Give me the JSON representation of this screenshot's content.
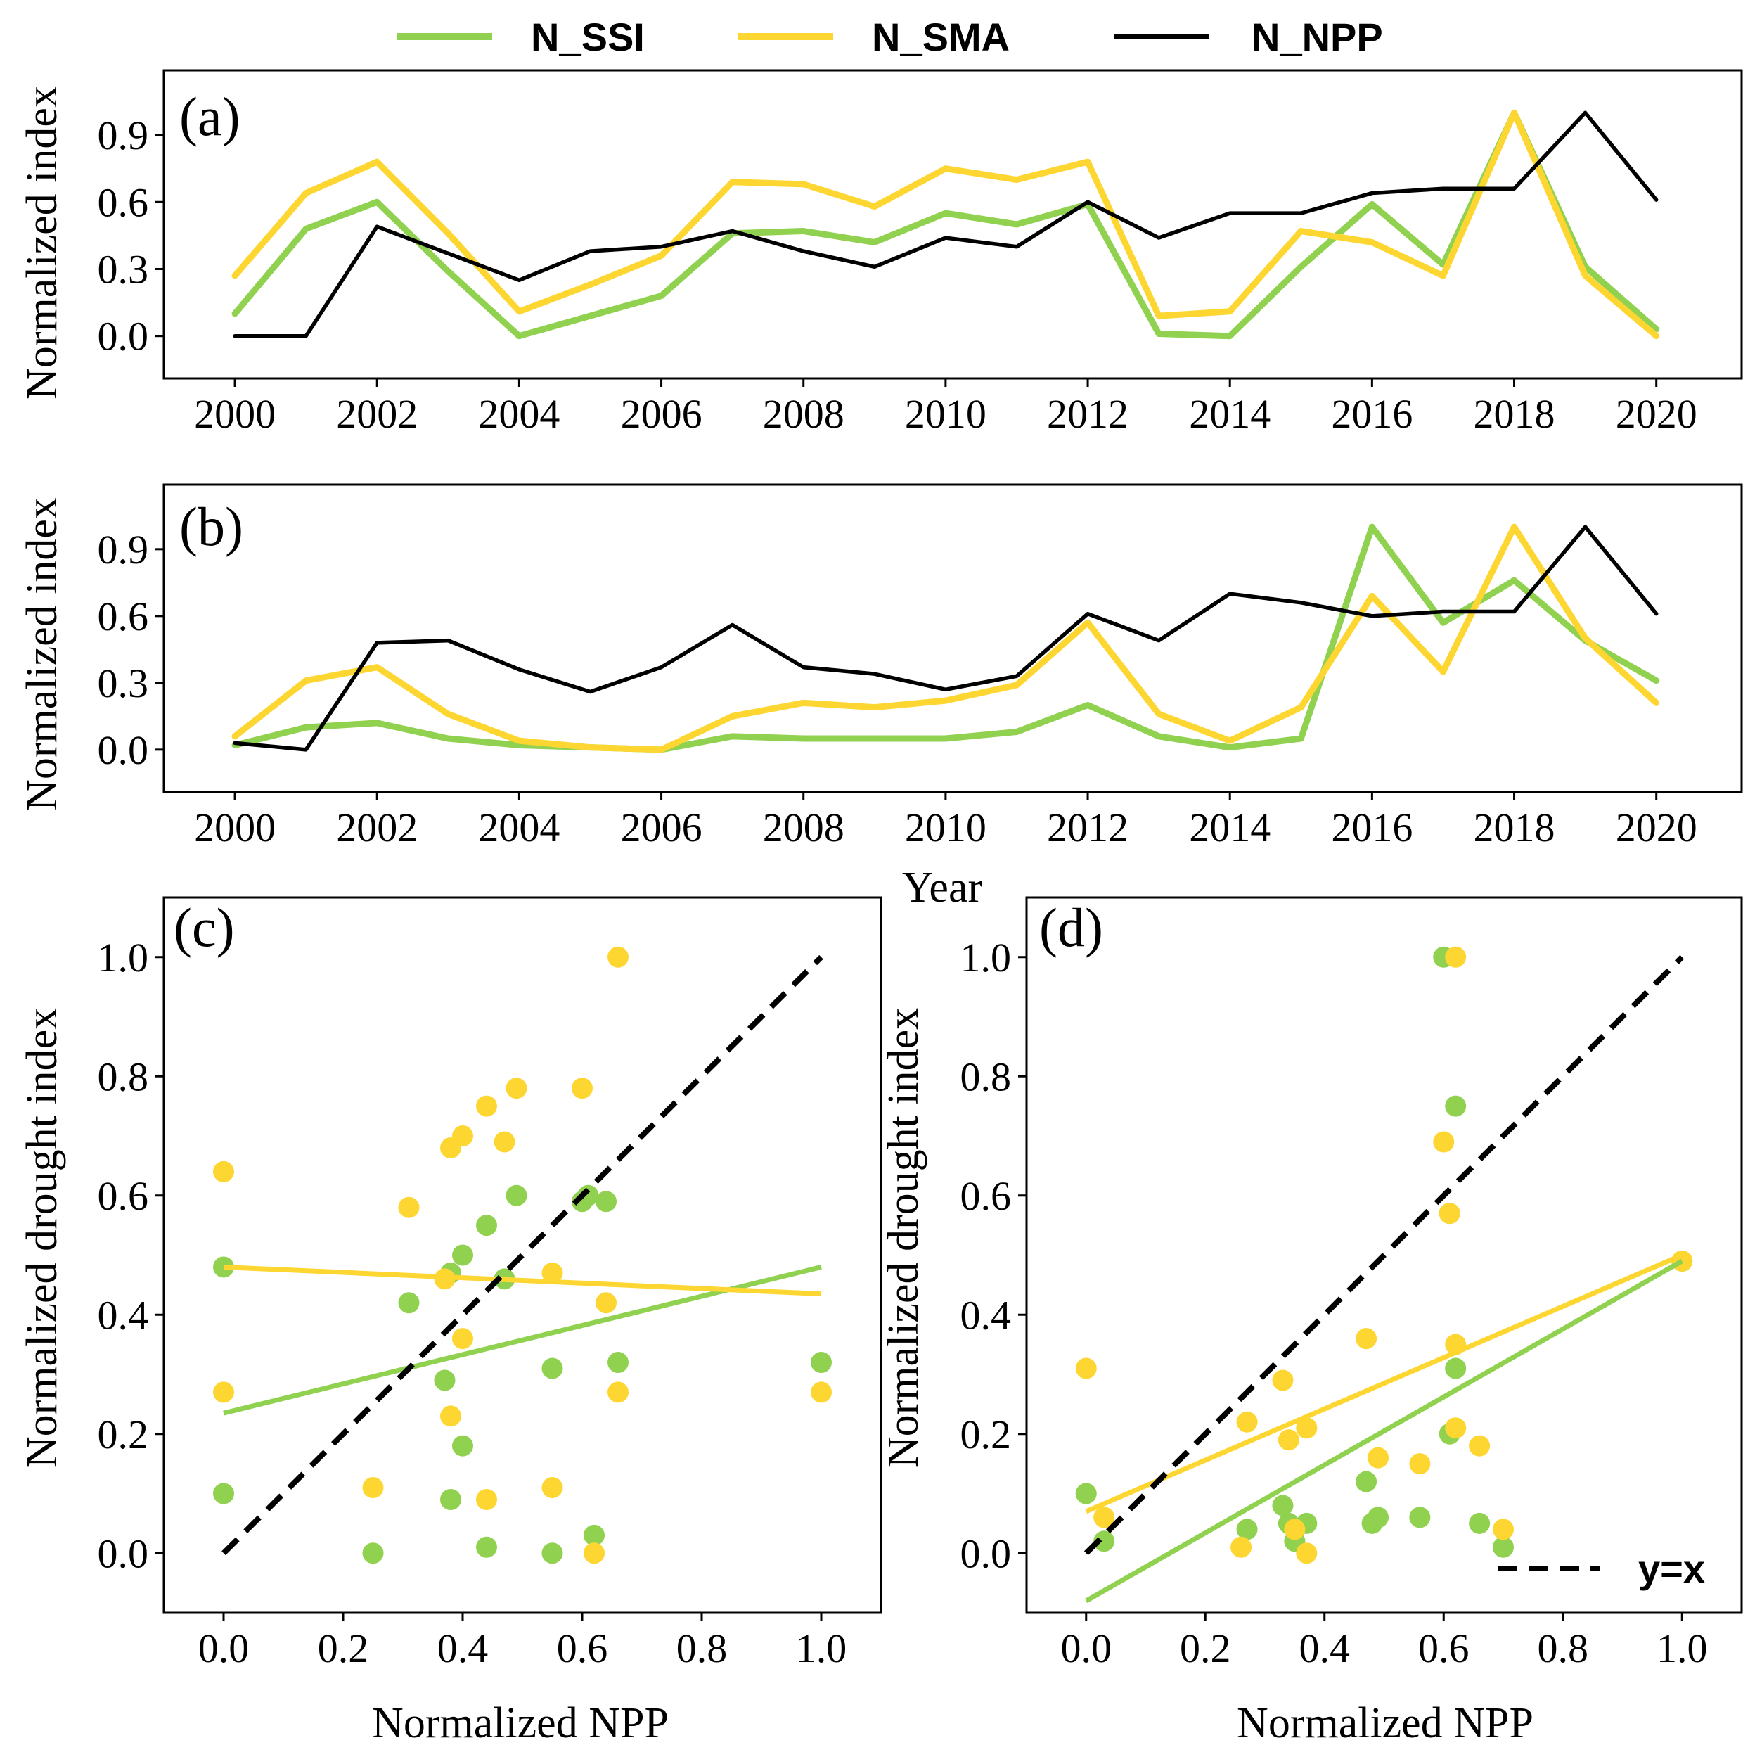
{
  "colors": {
    "ssi": "#90d14f",
    "sma": "#fdd631",
    "npp": "#000000"
  },
  "chart_data": [
    {
      "type": "line",
      "panel": "(a)",
      "legend": [
        "N_SSI",
        "N_SMA",
        "N_NPP"
      ],
      "xlabel": "",
      "ylabel": "Normalized index",
      "x": [
        2000,
        2001,
        2002,
        2003,
        2004,
        2005,
        2006,
        2007,
        2008,
        2009,
        2010,
        2011,
        2012,
        2013,
        2014,
        2015,
        2016,
        2017,
        2018,
        2019,
        2020
      ],
      "xticks": [
        "2000",
        "2002",
        "2004",
        "2006",
        "2008",
        "2010",
        "2012",
        "2014",
        "2016",
        "2018",
        "2020"
      ],
      "yticks": [
        "0.0",
        "0.3",
        "0.6",
        "0.9"
      ],
      "xlim": [
        1999,
        2021.2
      ],
      "ylim": [
        -0.19,
        1.19
      ],
      "series": [
        {
          "name": "N_SSI",
          "values": [
            0.1,
            0.48,
            0.6,
            0.29,
            0.0,
            0.09,
            0.18,
            0.46,
            0.47,
            0.42,
            0.55,
            0.5,
            0.59,
            0.01,
            0.0,
            0.31,
            0.59,
            0.32,
            1.0,
            0.31,
            0.03
          ]
        },
        {
          "name": "N_SMA",
          "values": [
            0.27,
            0.64,
            0.78,
            0.46,
            0.11,
            0.23,
            0.36,
            0.69,
            0.68,
            0.58,
            0.75,
            0.7,
            0.78,
            0.09,
            0.11,
            0.47,
            0.42,
            0.27,
            1.0,
            0.27,
            0.0
          ]
        },
        {
          "name": "N_NPP",
          "values": [
            0.0,
            0.0,
            0.49,
            0.37,
            0.25,
            0.38,
            0.4,
            0.47,
            0.38,
            0.31,
            0.44,
            0.4,
            0.6,
            0.44,
            0.55,
            0.55,
            0.64,
            0.66,
            0.66,
            1.0,
            0.61
          ]
        }
      ]
    },
    {
      "type": "line",
      "panel": "(b)",
      "xlabel": "Year",
      "ylabel": "Normalized index",
      "x": [
        2000,
        2001,
        2002,
        2003,
        2004,
        2005,
        2006,
        2007,
        2008,
        2009,
        2010,
        2011,
        2012,
        2013,
        2014,
        2015,
        2016,
        2017,
        2018,
        2019,
        2020
      ],
      "xticks": [
        "2000",
        "2002",
        "2004",
        "2006",
        "2008",
        "2010",
        "2012",
        "2014",
        "2016",
        "2018",
        "2020"
      ],
      "yticks": [
        "0.0",
        "0.3",
        "0.6",
        "0.9"
      ],
      "xlim": [
        1999,
        2021.2
      ],
      "ylim": [
        -0.19,
        1.19
      ],
      "series": [
        {
          "name": "N_SSI",
          "values": [
            0.02,
            0.1,
            0.12,
            0.05,
            0.02,
            0.01,
            0.0,
            0.06,
            0.05,
            0.05,
            0.05,
            0.08,
            0.2,
            0.06,
            0.01,
            0.05,
            1.0,
            0.57,
            0.76,
            0.49,
            0.31
          ]
        },
        {
          "name": "N_SMA",
          "values": [
            0.06,
            0.31,
            0.37,
            0.16,
            0.04,
            0.01,
            0.0,
            0.15,
            0.21,
            0.19,
            0.22,
            0.29,
            0.57,
            0.16,
            0.04,
            0.19,
            0.69,
            0.35,
            1.0,
            0.5,
            0.21
          ]
        },
        {
          "name": "N_NPP",
          "values": [
            0.03,
            0.0,
            0.48,
            0.49,
            0.36,
            0.26,
            0.37,
            0.56,
            0.37,
            0.34,
            0.27,
            0.33,
            0.61,
            0.49,
            0.7,
            0.66,
            0.6,
            0.62,
            0.62,
            1.0,
            0.61
          ]
        }
      ]
    },
    {
      "type": "scatter",
      "panel": "(c)",
      "xlabel": "Normalized NPP",
      "ylabel": "Normalized drought index",
      "xticks": [
        "0.0",
        "0.2",
        "0.4",
        "0.6",
        "0.8",
        "1.0"
      ],
      "yticks": [
        "0.0",
        "0.2",
        "0.4",
        "0.6",
        "0.8",
        "1.0"
      ],
      "xlim": [
        -0.1,
        1.1
      ],
      "ylim": [
        -0.1,
        1.1
      ],
      "series": [
        {
          "name": "N_SSI",
          "points": [
            [
              0.0,
              0.1
            ],
            [
              0.0,
              0.48
            ],
            [
              0.49,
              0.6
            ],
            [
              0.37,
              0.29
            ],
            [
              0.25,
              0.0
            ],
            [
              0.38,
              0.09
            ],
            [
              0.4,
              0.18
            ],
            [
              0.47,
              0.46
            ],
            [
              0.38,
              0.47
            ],
            [
              0.31,
              0.42
            ],
            [
              0.44,
              0.55
            ],
            [
              0.4,
              0.5
            ],
            [
              0.6,
              0.59
            ],
            [
              0.44,
              0.01
            ],
            [
              0.55,
              0.0
            ],
            [
              0.55,
              0.31
            ],
            [
              0.64,
              0.59
            ],
            [
              0.66,
              0.32
            ],
            [
              0.62,
              0.03
            ],
            [
              1.0,
              0.32
            ],
            [
              0.61,
              0.6
            ]
          ],
          "fit": [
            [
              0.0,
              0.235
            ],
            [
              1.0,
              0.48
            ]
          ]
        },
        {
          "name": "N_SMA",
          "points": [
            [
              0.0,
              0.27
            ],
            [
              0.0,
              0.64
            ],
            [
              0.49,
              0.78
            ],
            [
              0.37,
              0.46
            ],
            [
              0.25,
              0.11
            ],
            [
              0.38,
              0.23
            ],
            [
              0.4,
              0.36
            ],
            [
              0.47,
              0.69
            ],
            [
              0.38,
              0.68
            ],
            [
              0.31,
              0.58
            ],
            [
              0.44,
              0.75
            ],
            [
              0.4,
              0.7
            ],
            [
              0.6,
              0.78
            ],
            [
              0.44,
              0.09
            ],
            [
              0.55,
              0.11
            ],
            [
              0.55,
              0.47
            ],
            [
              0.64,
              0.42
            ],
            [
              0.66,
              0.27
            ],
            [
              0.62,
              0.0
            ],
            [
              1.0,
              0.27
            ],
            [
              0.66,
              1.0
            ]
          ],
          "fit": [
            [
              0.0,
              0.48
            ],
            [
              1.0,
              0.435
            ]
          ]
        }
      ],
      "reference_line": "y=x"
    },
    {
      "type": "scatter",
      "panel": "(d)",
      "xlabel": "Normalized NPP",
      "ylabel": "Normalized drought index",
      "xticks": [
        "0.0",
        "0.2",
        "0.4",
        "0.6",
        "0.8",
        "1.0"
      ],
      "yticks": [
        "0.0",
        "0.2",
        "0.4",
        "0.6",
        "0.8",
        "1.0"
      ],
      "xlim": [
        -0.1,
        1.1
      ],
      "ylim": [
        -0.1,
        1.1
      ],
      "legend": [
        "y=x"
      ],
      "series": [
        {
          "name": "N_SSI",
          "points": [
            [
              0.0,
              0.1
            ],
            [
              0.03,
              0.02
            ],
            [
              0.27,
              0.04
            ],
            [
              0.33,
              0.08
            ],
            [
              0.34,
              0.05
            ],
            [
              0.35,
              0.02
            ],
            [
              0.37,
              0.05
            ],
            [
              0.47,
              0.12
            ],
            [
              0.48,
              0.05
            ],
            [
              0.49,
              0.06
            ],
            [
              0.56,
              0.06
            ],
            [
              0.6,
              1.0
            ],
            [
              0.61,
              0.57
            ],
            [
              0.62,
              0.75
            ],
            [
              0.62,
              0.31
            ],
            [
              0.61,
              0.2
            ],
            [
              0.66,
              0.05
            ],
            [
              0.7,
              0.01
            ],
            [
              1.0,
              0.49
            ]
          ],
          "fit": [
            [
              0.0,
              -0.08
            ],
            [
              1.0,
              0.49
            ]
          ]
        },
        {
          "name": "N_SMA",
          "points": [
            [
              0.0,
              0.31
            ],
            [
              0.03,
              0.06
            ],
            [
              0.26,
              0.01
            ],
            [
              0.27,
              0.22
            ],
            [
              0.33,
              0.29
            ],
            [
              0.34,
              0.19
            ],
            [
              0.35,
              0.04
            ],
            [
              0.37,
              0.21
            ],
            [
              0.37,
              0.0
            ],
            [
              0.47,
              0.36
            ],
            [
              0.49,
              0.16
            ],
            [
              0.56,
              0.15
            ],
            [
              0.6,
              0.69
            ],
            [
              0.61,
              0.57
            ],
            [
              0.62,
              1.0
            ],
            [
              0.62,
              0.35
            ],
            [
              0.62,
              0.21
            ],
            [
              0.66,
              0.18
            ],
            [
              0.7,
              0.04
            ],
            [
              1.0,
              0.49
            ]
          ],
          "fit": [
            [
              0.0,
              0.07
            ],
            [
              1.0,
              0.5
            ]
          ]
        }
      ],
      "reference_line": "y=x"
    }
  ]
}
